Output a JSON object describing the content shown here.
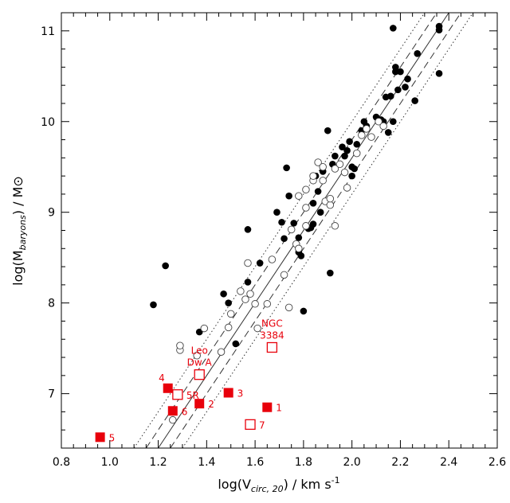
{
  "chart_data": {
    "type": "scatter",
    "title": "",
    "xlabel_main": "log(V",
    "xlabel_sub": "circ, 20",
    "xlabel_unit": ") / km s",
    "xlabel_sup": "-1",
    "ylabel_main": "log(M",
    "ylabel_sub": "baryons",
    "ylabel_unit": ") / M",
    "ylabel_sun": "⊙",
    "xlim": [
      0.8,
      2.6
    ],
    "ylim": [
      6.4,
      11.2
    ],
    "x_ticks": [
      0.8,
      1.0,
      1.2,
      1.4,
      1.6,
      1.8,
      2.0,
      2.2,
      2.4,
      2.6
    ],
    "x_tick_labels": [
      "0.8",
      "1.0",
      "1.2",
      "1.4",
      "1.6",
      "1.8",
      "2.0",
      "2.2",
      "2.4",
      "2.6"
    ],
    "y_ticks": [
      7,
      8,
      9,
      10,
      11
    ],
    "y_tick_labels": [
      "7",
      "8",
      "9",
      "10",
      "11"
    ],
    "fit_lines": [
      {
        "name": "fit",
        "style": "solid",
        "points": [
          [
            1.2,
            6.4
          ],
          [
            2.4,
            11.2
          ]
        ]
      },
      {
        "name": "scatter-lower",
        "style": "dashed",
        "points": [
          [
            1.25,
            6.4
          ],
          [
            2.45,
            11.2
          ]
        ]
      },
      {
        "name": "scatter-upper",
        "style": "dashed",
        "points": [
          [
            1.15,
            6.4
          ],
          [
            2.35,
            11.2
          ]
        ]
      },
      {
        "name": "outer-lower",
        "style": "dotted",
        "points": [
          [
            1.3,
            6.4
          ],
          [
            2.5,
            11.2
          ]
        ]
      },
      {
        "name": "outer-upper",
        "style": "dotted",
        "points": [
          [
            1.1,
            6.4
          ],
          [
            2.3,
            11.2
          ]
        ]
      }
    ],
    "series": [
      {
        "name": "filled circles",
        "marker": "circle-filled",
        "points": [
          [
            1.18,
            7.98
          ],
          [
            1.23,
            8.41
          ],
          [
            1.37,
            7.68
          ],
          [
            1.47,
            8.1
          ],
          [
            1.49,
            8.0
          ],
          [
            1.52,
            7.55
          ],
          [
            1.57,
            8.23
          ],
          [
            1.57,
            8.81
          ],
          [
            1.62,
            8.44
          ],
          [
            1.72,
            8.71
          ],
          [
            1.73,
            9.49
          ],
          [
            1.69,
            9.0
          ],
          [
            1.71,
            8.89
          ],
          [
            1.74,
            9.18
          ],
          [
            1.76,
            8.88
          ],
          [
            1.78,
            8.72
          ],
          [
            1.78,
            8.56
          ],
          [
            1.79,
            8.52
          ],
          [
            1.8,
            7.91
          ],
          [
            1.82,
            8.82
          ],
          [
            1.83,
            8.83
          ],
          [
            1.84,
            8.87
          ],
          [
            1.84,
            9.1
          ],
          [
            1.85,
            9.4
          ],
          [
            1.86,
            9.23
          ],
          [
            1.87,
            9.0
          ],
          [
            1.88,
            9.45
          ],
          [
            1.9,
            9.9
          ],
          [
            1.91,
            8.33
          ],
          [
            1.92,
            9.53
          ],
          [
            1.93,
            9.62
          ],
          [
            1.96,
            9.72
          ],
          [
            1.97,
            9.62
          ],
          [
            1.98,
            9.68
          ],
          [
            1.99,
            9.78
          ],
          [
            2.0,
            9.5
          ],
          [
            2.0,
            9.4
          ],
          [
            2.01,
            9.48
          ],
          [
            2.02,
            9.75
          ],
          [
            2.04,
            9.9
          ],
          [
            2.05,
            10.0
          ],
          [
            2.06,
            9.95
          ],
          [
            2.1,
            10.05
          ],
          [
            2.12,
            10.02
          ],
          [
            2.13,
            10.0
          ],
          [
            2.14,
            10.27
          ],
          [
            2.15,
            9.88
          ],
          [
            2.16,
            10.28
          ],
          [
            2.17,
            10.0
          ],
          [
            2.18,
            10.55
          ],
          [
            2.19,
            10.35
          ],
          [
            2.2,
            10.55
          ],
          [
            2.22,
            10.38
          ],
          [
            2.23,
            10.47
          ],
          [
            2.26,
            10.23
          ],
          [
            2.27,
            10.75
          ],
          [
            2.36,
            10.53
          ],
          [
            2.17,
            11.03
          ],
          [
            2.18,
            10.6
          ],
          [
            2.36,
            11.05
          ],
          [
            2.36,
            11.01
          ],
          [
            2.13,
            9.97
          ]
        ]
      },
      {
        "name": "open circles",
        "marker": "circle-open",
        "points": [
          [
            1.26,
            6.71
          ],
          [
            1.29,
            7.48
          ],
          [
            1.29,
            7.53
          ],
          [
            1.36,
            7.42
          ],
          [
            1.39,
            7.72
          ],
          [
            1.46,
            7.46
          ],
          [
            1.49,
            7.73
          ],
          [
            1.5,
            7.88
          ],
          [
            1.54,
            8.13
          ],
          [
            1.56,
            8.04
          ],
          [
            1.57,
            8.44
          ],
          [
            1.58,
            8.1
          ],
          [
            1.6,
            7.99
          ],
          [
            1.61,
            7.72
          ],
          [
            1.65,
            7.99
          ],
          [
            1.67,
            8.48
          ],
          [
            1.72,
            8.31
          ],
          [
            1.74,
            7.95
          ],
          [
            1.75,
            8.81
          ],
          [
            1.77,
            8.65
          ],
          [
            1.78,
            8.6
          ],
          [
            1.78,
            9.18
          ],
          [
            1.81,
            9.25
          ],
          [
            1.81,
            9.05
          ],
          [
            1.84,
            9.35
          ],
          [
            1.84,
            9.4
          ],
          [
            1.86,
            9.55
          ],
          [
            1.88,
            9.5
          ],
          [
            1.88,
            9.35
          ],
          [
            1.89,
            9.12
          ],
          [
            1.91,
            9.08
          ],
          [
            1.93,
            9.48
          ],
          [
            1.95,
            9.53
          ],
          [
            1.97,
            9.44
          ],
          [
            1.98,
            9.27
          ],
          [
            2.02,
            9.65
          ],
          [
            2.04,
            9.85
          ],
          [
            2.06,
            9.92
          ],
          [
            2.08,
            9.83
          ],
          [
            2.11,
            10.0
          ],
          [
            2.13,
            9.95
          ],
          [
            1.93,
            8.85
          ],
          [
            1.91,
            9.15
          ],
          [
            1.81,
            8.85
          ]
        ]
      },
      {
        "name": "filled squares",
        "marker": "square-filled",
        "points": [
          [
            1.65,
            6.85
          ],
          [
            1.37,
            6.89
          ],
          [
            1.49,
            7.01
          ],
          [
            1.24,
            7.06
          ],
          [
            0.96,
            6.52
          ],
          [
            1.26,
            6.81
          ]
        ]
      },
      {
        "name": "open squares",
        "marker": "square-open",
        "points": [
          [
            1.67,
            7.51
          ],
          [
            1.37,
            7.21
          ],
          [
            1.28,
            6.99
          ],
          [
            1.58,
            6.66
          ]
        ]
      }
    ],
    "annotations": [
      {
        "text": "1",
        "x": 1.65,
        "y": 6.85,
        "anchor": "right"
      },
      {
        "text": "2",
        "x": 1.37,
        "y": 6.89,
        "anchor": "right"
      },
      {
        "text": "3",
        "x": 1.49,
        "y": 7.01,
        "anchor": "right"
      },
      {
        "text": "4",
        "x": 1.24,
        "y": 7.06,
        "anchor": "upper-left"
      },
      {
        "text": "5",
        "x": 0.96,
        "y": 6.52,
        "anchor": "right"
      },
      {
        "text": "6",
        "x": 1.26,
        "y": 6.81,
        "anchor": "right"
      },
      {
        "text": "7",
        "x": 1.58,
        "y": 6.66,
        "anchor": "right"
      },
      {
        "text": "5R",
        "x": 1.28,
        "y": 6.99,
        "anchor": "right"
      },
      {
        "text": "Leo",
        "x": 1.37,
        "y": 7.21,
        "anchor": "above-2"
      },
      {
        "text": "Dw A",
        "x": 1.37,
        "y": 7.21,
        "anchor": "above-1"
      },
      {
        "text": "NGC",
        "x": 1.67,
        "y": 7.51,
        "anchor": "above-2"
      },
      {
        "text": "3384",
        "x": 1.67,
        "y": 7.51,
        "anchor": "above-1"
      }
    ],
    "colors": {
      "highlight": "#e8000b",
      "points": "#000000",
      "lines": "#000000"
    }
  }
}
